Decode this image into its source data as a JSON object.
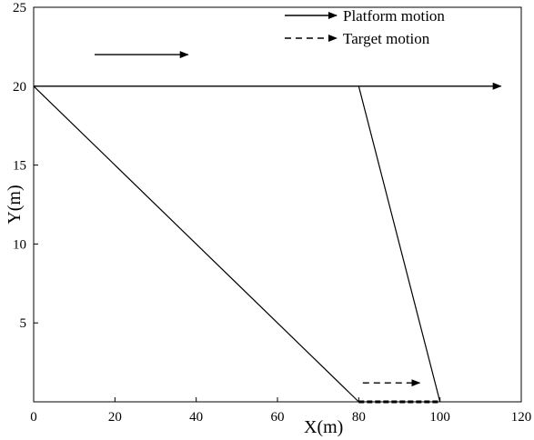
{
  "chart_data": {
    "type": "line",
    "title": "",
    "xlabel": "X(m)",
    "ylabel": "Y(m)",
    "xlim": [
      0,
      120
    ],
    "ylim": [
      0,
      25
    ],
    "xticks": [
      "0",
      "20",
      "40",
      "60",
      "80",
      "100",
      "120"
    ],
    "yticks": [
      "5",
      "10",
      "15",
      "20",
      "25"
    ],
    "grid": false,
    "legend_position": "top-right",
    "legend": [
      {
        "label": "Platform motion",
        "style": "solid-arrow"
      },
      {
        "label": "Target motion",
        "style": "dashed-arrow"
      }
    ],
    "series": [
      {
        "name": "Platform motion",
        "style": "solid-arrow",
        "points": [
          [
            0,
            20
          ],
          [
            115,
            20
          ]
        ]
      },
      {
        "name": "Target motion",
        "style": "dashed",
        "points": [
          [
            80,
            0
          ],
          [
            100,
            0
          ]
        ]
      },
      {
        "style": "solid",
        "points": [
          [
            0,
            20
          ],
          [
            80,
            0
          ]
        ]
      },
      {
        "style": "solid",
        "points": [
          [
            80,
            20
          ],
          [
            100,
            0
          ]
        ]
      }
    ],
    "annotations": [
      {
        "style": "solid-arrow",
        "from": [
          15,
          22
        ],
        "to": [
          38,
          22
        ]
      },
      {
        "style": "dashed-arrow",
        "from": [
          81,
          1.2
        ],
        "to": [
          95,
          1.2
        ]
      }
    ]
  }
}
